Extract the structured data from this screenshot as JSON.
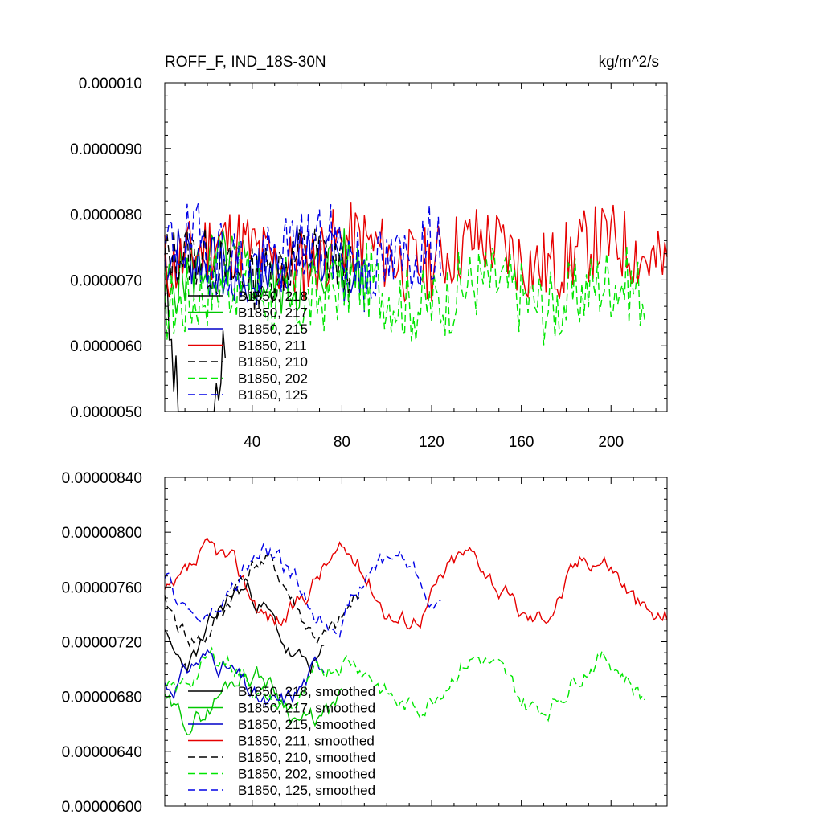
{
  "chart_data": [
    {
      "type": "line",
      "title_left": "ROFF_F, IND_18S-30N",
      "title_right": "kg/m^2/s",
      "xlim": [
        1,
        225
      ],
      "ylim": [
        5e-06,
        1e-05
      ],
      "x_ticks": [
        40,
        80,
        120,
        160,
        200
      ],
      "x_tick_labels": [
        "40",
        "80",
        "120",
        "160",
        "200"
      ],
      "y_ticks": [
        5e-06,
        6e-06,
        7e-06,
        8e-06,
        9e-06,
        1e-05
      ],
      "y_tick_labels": [
        "0.0000050",
        "0.0000060",
        "0.0000070",
        "0.0000080",
        "0.0000090",
        "0.000010"
      ],
      "series": [
        {
          "name": "B1850, 218",
          "color": "#000000",
          "dash": "solid",
          "length": 28,
          "center": 6.8e-06,
          "amp": 6e-07,
          "wave": 3e-06,
          "seed": 3
        },
        {
          "name": "B1850, 217",
          "color": "#00c800",
          "dash": "solid",
          "length": 92,
          "center": 7.1e-06,
          "amp": 5e-07,
          "wave": 2e-07,
          "seed": 5
        },
        {
          "name": "B1850, 215",
          "color": "#0000c8",
          "dash": "solid",
          "length": 90,
          "center": 7.2e-06,
          "amp": 5e-07,
          "wave": 2e-07,
          "seed": 7
        },
        {
          "name": "B1850, 211",
          "color": "#e60000",
          "dash": "solid",
          "length": 225,
          "center": 7.4e-06,
          "amp": 6e-07,
          "wave": 2e-07,
          "seed": 11
        },
        {
          "name": "B1850, 210",
          "color": "#000000",
          "dash": "dashed",
          "length": 84,
          "center": 7.2e-06,
          "amp": 5e-07,
          "wave": 2e-07,
          "seed": 13
        },
        {
          "name": "B1850, 202",
          "color": "#00e600",
          "dash": "dashed",
          "length": 215,
          "center": 6.8e-06,
          "amp": 6e-07,
          "wave": 2e-07,
          "seed": 17
        },
        {
          "name": "B1850, 125",
          "color": "#0000e6",
          "dash": "dashed",
          "length": 124,
          "center": 7.4e-06,
          "amp": 6e-07,
          "wave": 2e-07,
          "seed": 19
        }
      ]
    },
    {
      "type": "line",
      "xlim": [
        1,
        225
      ],
      "ylim": [
        6e-06,
        8.4e-06
      ],
      "x_ticks": [
        40,
        80,
        120,
        160,
        200
      ],
      "x_tick_labels": [],
      "y_ticks": [
        6e-06,
        6.4e-06,
        6.8e-06,
        7.2e-06,
        7.6e-06,
        8e-06,
        8.4e-06
      ],
      "y_tick_labels": [
        "0.00000600",
        "0.00000640",
        "0.00000680",
        "0.00000720",
        "0.00000760",
        "0.00000800",
        "0.00000840"
      ],
      "series": [
        {
          "name": "B1850, 218, smoothed",
          "color": "#000000",
          "dash": "solid",
          "length": 72,
          "center": 7.3e-06,
          "amp": 2.5e-07,
          "wave": 3e-07,
          "seed": 23
        },
        {
          "name": "B1850, 217, smoothed",
          "color": "#00c800",
          "dash": "solid",
          "length": 80,
          "center": 6.8e-06,
          "amp": 2.5e-07,
          "wave": 2e-07,
          "seed": 29
        },
        {
          "name": "B1850, 215, smoothed",
          "color": "#0000c8",
          "dash": "solid",
          "length": 72,
          "center": 6.9e-06,
          "amp": 2.5e-07,
          "wave": 2e-07,
          "seed": 31
        },
        {
          "name": "B1850, 211, smoothed",
          "color": "#e60000",
          "dash": "solid",
          "length": 225,
          "center": 7.6e-06,
          "amp": 2.5e-07,
          "wave": 2.5e-07,
          "seed": 37
        },
        {
          "name": "B1850, 210, smoothed",
          "color": "#000000",
          "dash": "dashed",
          "length": 88,
          "center": 7.5e-06,
          "amp": 2.5e-07,
          "wave": 3e-07,
          "seed": 41
        },
        {
          "name": "B1850, 202, smoothed",
          "color": "#00e600",
          "dash": "dashed",
          "length": 215,
          "center": 6.9e-06,
          "amp": 2.5e-07,
          "wave": 2e-07,
          "seed": 43
        },
        {
          "name": "B1850, 125, smoothed",
          "color": "#0000e6",
          "dash": "dashed",
          "length": 124,
          "center": 7.6e-06,
          "amp": 2.5e-07,
          "wave": 2.5e-07,
          "seed": 47
        }
      ]
    }
  ]
}
